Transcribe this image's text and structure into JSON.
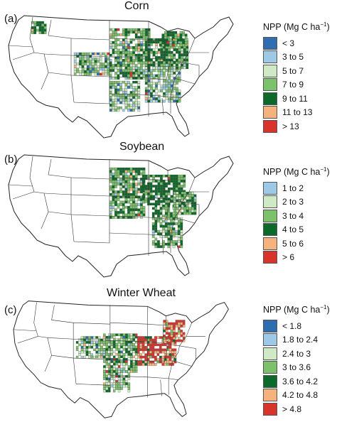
{
  "panels": [
    {
      "id": "a",
      "label": "(a)",
      "title": "Corn",
      "legend_title": "NPP (Mg C ha",
      "legend_unit_exp": "−1",
      "legend_unit_close": ")",
      "classes": [
        {
          "label": "< 3",
          "color": "#2f6db3"
        },
        {
          "label": "3 to 5",
          "color": "#9ec9e6"
        },
        {
          "label": "5 to 7",
          "color": "#cfe8c6"
        },
        {
          "label": "7 to 9",
          "color": "#7cc26a"
        },
        {
          "label": "9 to 11",
          "color": "#0b6a2a"
        },
        {
          "label": "11 to 13",
          "color": "#f5b27d"
        },
        {
          "label": "> 13",
          "color": "#d9342b"
        }
      ]
    },
    {
      "id": "b",
      "label": "(b)",
      "title": "Soybean",
      "legend_title": "NPP (Mg C ha",
      "legend_unit_exp": "−1",
      "legend_unit_close": ")",
      "classes": [
        {
          "label": "1 to 2",
          "color": "#9ec9e6"
        },
        {
          "label": "2 to 3",
          "color": "#cfe8c6"
        },
        {
          "label": "3 to 4",
          "color": "#7cc26a"
        },
        {
          "label": "4 to 5",
          "color": "#0b6a2a"
        },
        {
          "label": "5 to 6",
          "color": "#f5b27d"
        },
        {
          "label": "> 6",
          "color": "#d9342b"
        }
      ]
    },
    {
      "id": "c",
      "label": "(c)",
      "title": "Winter Wheat",
      "legend_title": "NPP (Mg C ha",
      "legend_unit_exp": "−1",
      "legend_unit_close": ")",
      "classes": [
        {
          "label": "< 1.8",
          "color": "#2f6db3"
        },
        {
          "label": "1.8 to 2.4",
          "color": "#9ec9e6"
        },
        {
          "label": "2.4 to 3",
          "color": "#cfe8c6"
        },
        {
          "label": "3 to 3.6",
          "color": "#7cc26a"
        },
        {
          "label": "3.6 to 4.2",
          "color": "#0b6a2a"
        },
        {
          "label": "4.2 to 4.8",
          "color": "#f5b27d"
        },
        {
          "label": "> 4.8",
          "color": "#d9342b"
        }
      ]
    }
  ]
}
